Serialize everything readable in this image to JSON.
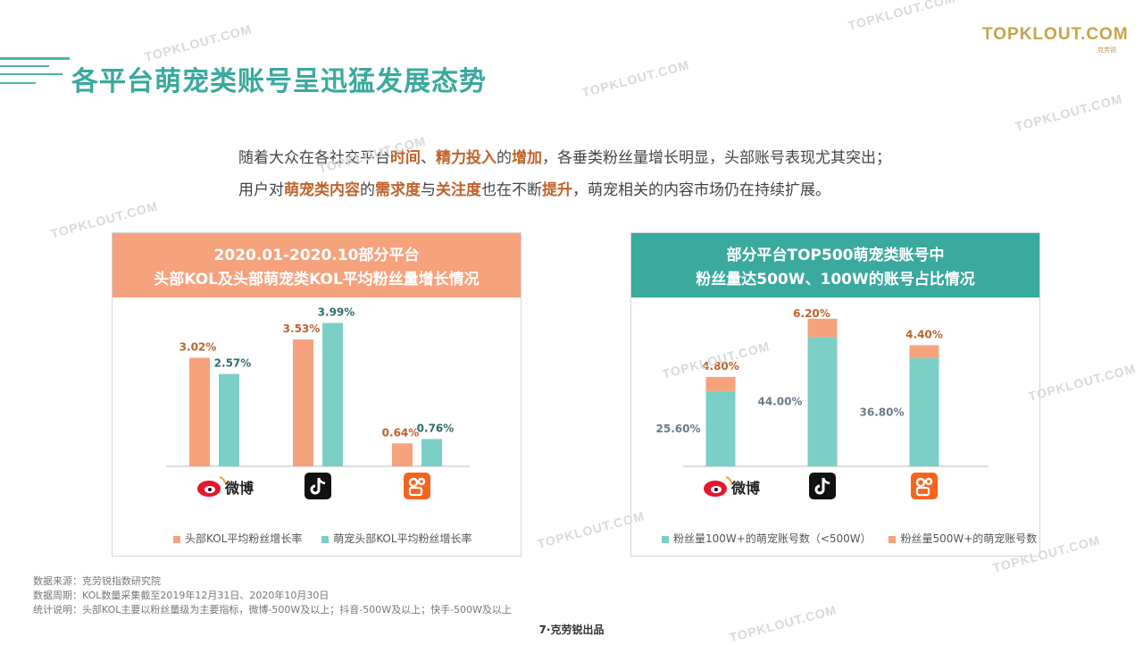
{
  "page": {
    "title": "各平台萌宠类账号呈迅猛发展态势",
    "logo": {
      "brand": "TOPKLOUT.COM",
      "brand_cn": "克劳锐"
    },
    "intro_line1": [
      {
        "t": "随着大众在各社交平台",
        "h": false
      },
      {
        "t": "时间",
        "h": true
      },
      {
        "t": "、",
        "h": false
      },
      {
        "t": "精力投入",
        "h": true
      },
      {
        "t": "的",
        "h": false
      },
      {
        "t": "增加",
        "h": true
      },
      {
        "t": "，各垂类粉丝量增长明显，头部账号表现尤其突出；",
        "h": false
      }
    ],
    "intro_line2": [
      {
        "t": "用户对",
        "h": false
      },
      {
        "t": "萌宠类内容",
        "h": true
      },
      {
        "t": "的",
        "h": false
      },
      {
        "t": "需求度",
        "h": true
      },
      {
        "t": "与",
        "h": false
      },
      {
        "t": "关注度",
        "h": true
      },
      {
        "t": "也在不断",
        "h": false
      },
      {
        "t": "提升",
        "h": true
      },
      {
        "t": "，萌宠相关的内容市场仍在持续扩展。",
        "h": false
      }
    ],
    "notes": [
      "数据来源：克劳锐指数研究院",
      "数据周期：KOL数量采集截至2019年12月31日、2020年10月30日",
      "统计说明：头部KOL主要以粉丝量级为主要指标，微博-500W及以上；抖音-500W及以上；快手-500W及以上"
    ],
    "footer": "7·克劳锐出品",
    "watermark": "TOPKLOUT.COM",
    "colors": {
      "teal": "#3aa99e",
      "orange": "#f6a27d",
      "bar_teal": "#7bcfc6",
      "label_orange": "#c0622a",
      "label_teal": "#2e6f6a"
    },
    "platform_icons": [
      "weibo-icon",
      "douyin-icon",
      "kuaishou-icon"
    ]
  },
  "chart_data": [
    {
      "type": "bar",
      "title_line1": "2020.01-2020.10部分平台",
      "title_line2": "头部KOL及头部萌宠类KOL平均粉丝量增长情况",
      "categories": [
        "微博",
        "抖音",
        "快手"
      ],
      "series": [
        {
          "name": "头部KOL平均粉丝增长率",
          "values": [
            3.02,
            3.53,
            0.64
          ],
          "labels": [
            "3.02%",
            "3.53%",
            "0.64%"
          ],
          "color": "#f6a27d"
        },
        {
          "name": "萌宠头部KOL平均粉丝增长率",
          "values": [
            2.57,
            3.99,
            0.76
          ],
          "labels": [
            "2.57%",
            "3.99%",
            "0.76%"
          ],
          "color": "#7bcfc6"
        }
      ],
      "ylim": [
        0,
        4.5
      ]
    },
    {
      "type": "bar",
      "stacked": true,
      "title_line1": "部分平台TOP500萌宠类账号中",
      "title_line2": "粉丝量达500W、100W的账号占比情况",
      "categories": [
        "微博",
        "抖音",
        "快手"
      ],
      "series": [
        {
          "name": "粉丝量100W+的萌宠账号数（<500W）",
          "values": [
            25.6,
            44.0,
            36.8
          ],
          "labels": [
            "25.60%",
            "44.00%",
            "36.80%"
          ],
          "color": "#7bcfc6"
        },
        {
          "name": "粉丝量500W+的萌宠账号数",
          "values": [
            4.8,
            6.2,
            4.4
          ],
          "labels": [
            "4.80%",
            "6.20%",
            "4.40%"
          ],
          "color": "#f6a27d"
        }
      ],
      "ylim": [
        0,
        55
      ]
    }
  ]
}
